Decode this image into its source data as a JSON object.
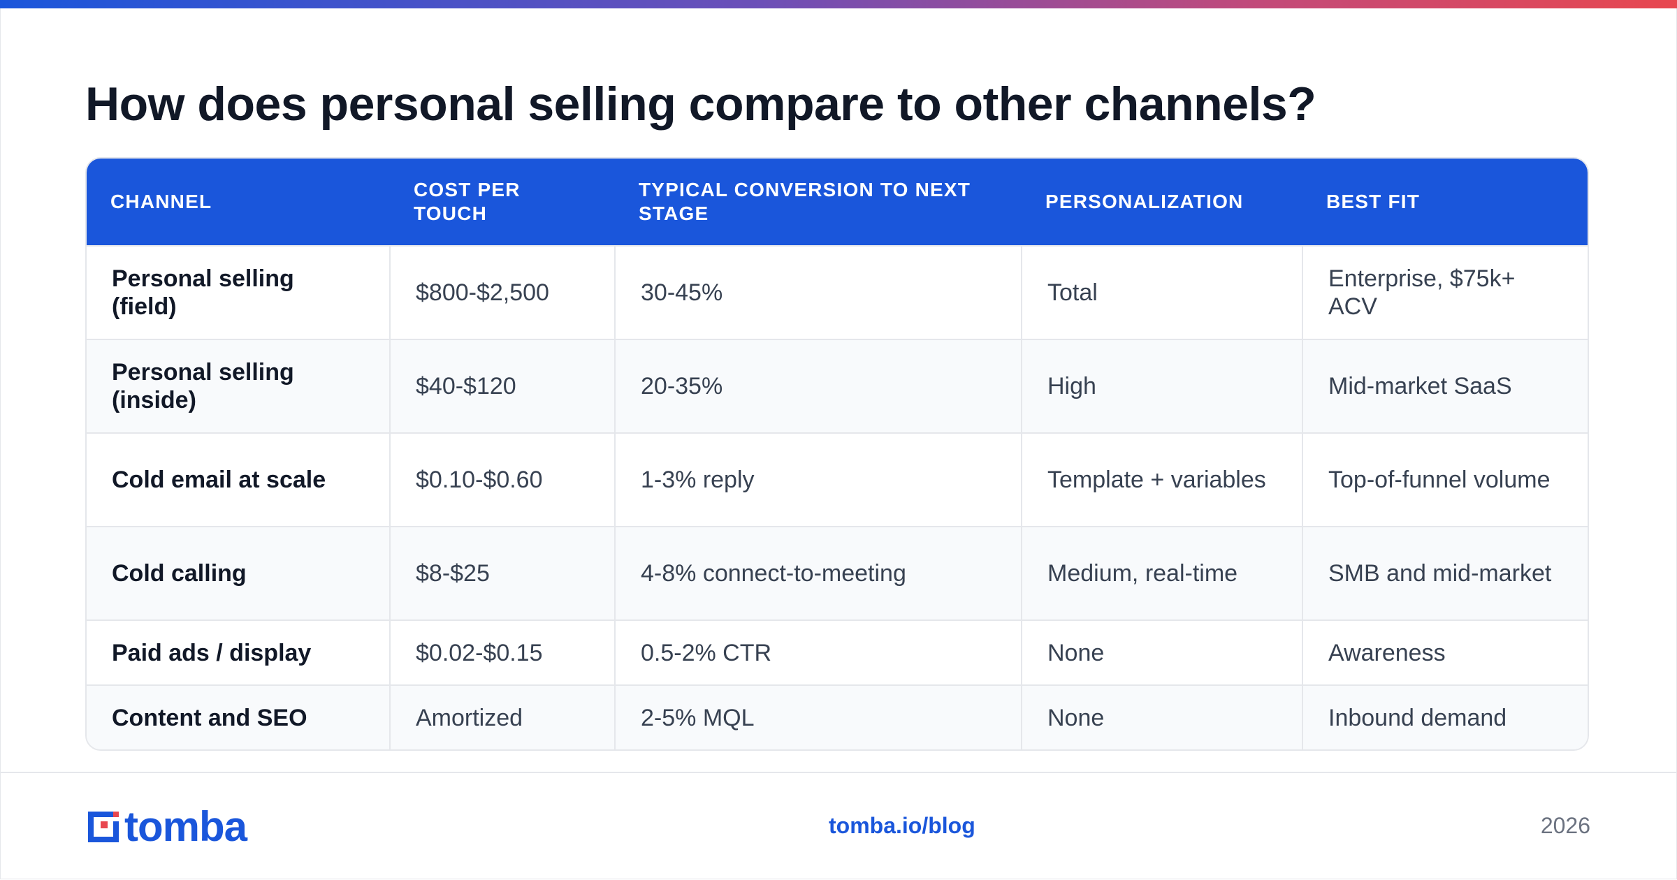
{
  "title": "How does personal selling compare to other channels?",
  "table": {
    "headers": [
      "CHANNEL",
      "COST PER TOUCH",
      "TYPICAL CONVERSION TO NEXT STAGE",
      "PERSONALIZATION",
      "BEST FIT"
    ],
    "rows": [
      [
        "Personal selling (field)",
        "$800-$2,500",
        "30-45%",
        "Total",
        "Enterprise, $75k+ ACV"
      ],
      [
        "Personal selling (inside)",
        "$40-$120",
        "20-35%",
        "High",
        "Mid-market SaaS"
      ],
      [
        "Cold email at scale",
        "$0.10-$0.60",
        "1-3% reply",
        "Template + variables",
        "Top-of-funnel volume"
      ],
      [
        "Cold calling",
        "$8-$25",
        "4-8% connect-to-meeting",
        "Medium, real-time",
        "SMB and mid-market"
      ],
      [
        "Paid ads / display",
        "$0.02-$0.15",
        "0.5-2% CTR",
        "None",
        "Awareness"
      ],
      [
        "Content and SEO",
        "Amortized",
        "2-5% MQL",
        "None",
        "Inbound demand"
      ]
    ]
  },
  "footer": {
    "logo_text": "tomba",
    "url": "tomba.io/blog",
    "year": "2026"
  },
  "colors": {
    "brand": "#1a56db",
    "logo_accent": "#e8474f"
  }
}
